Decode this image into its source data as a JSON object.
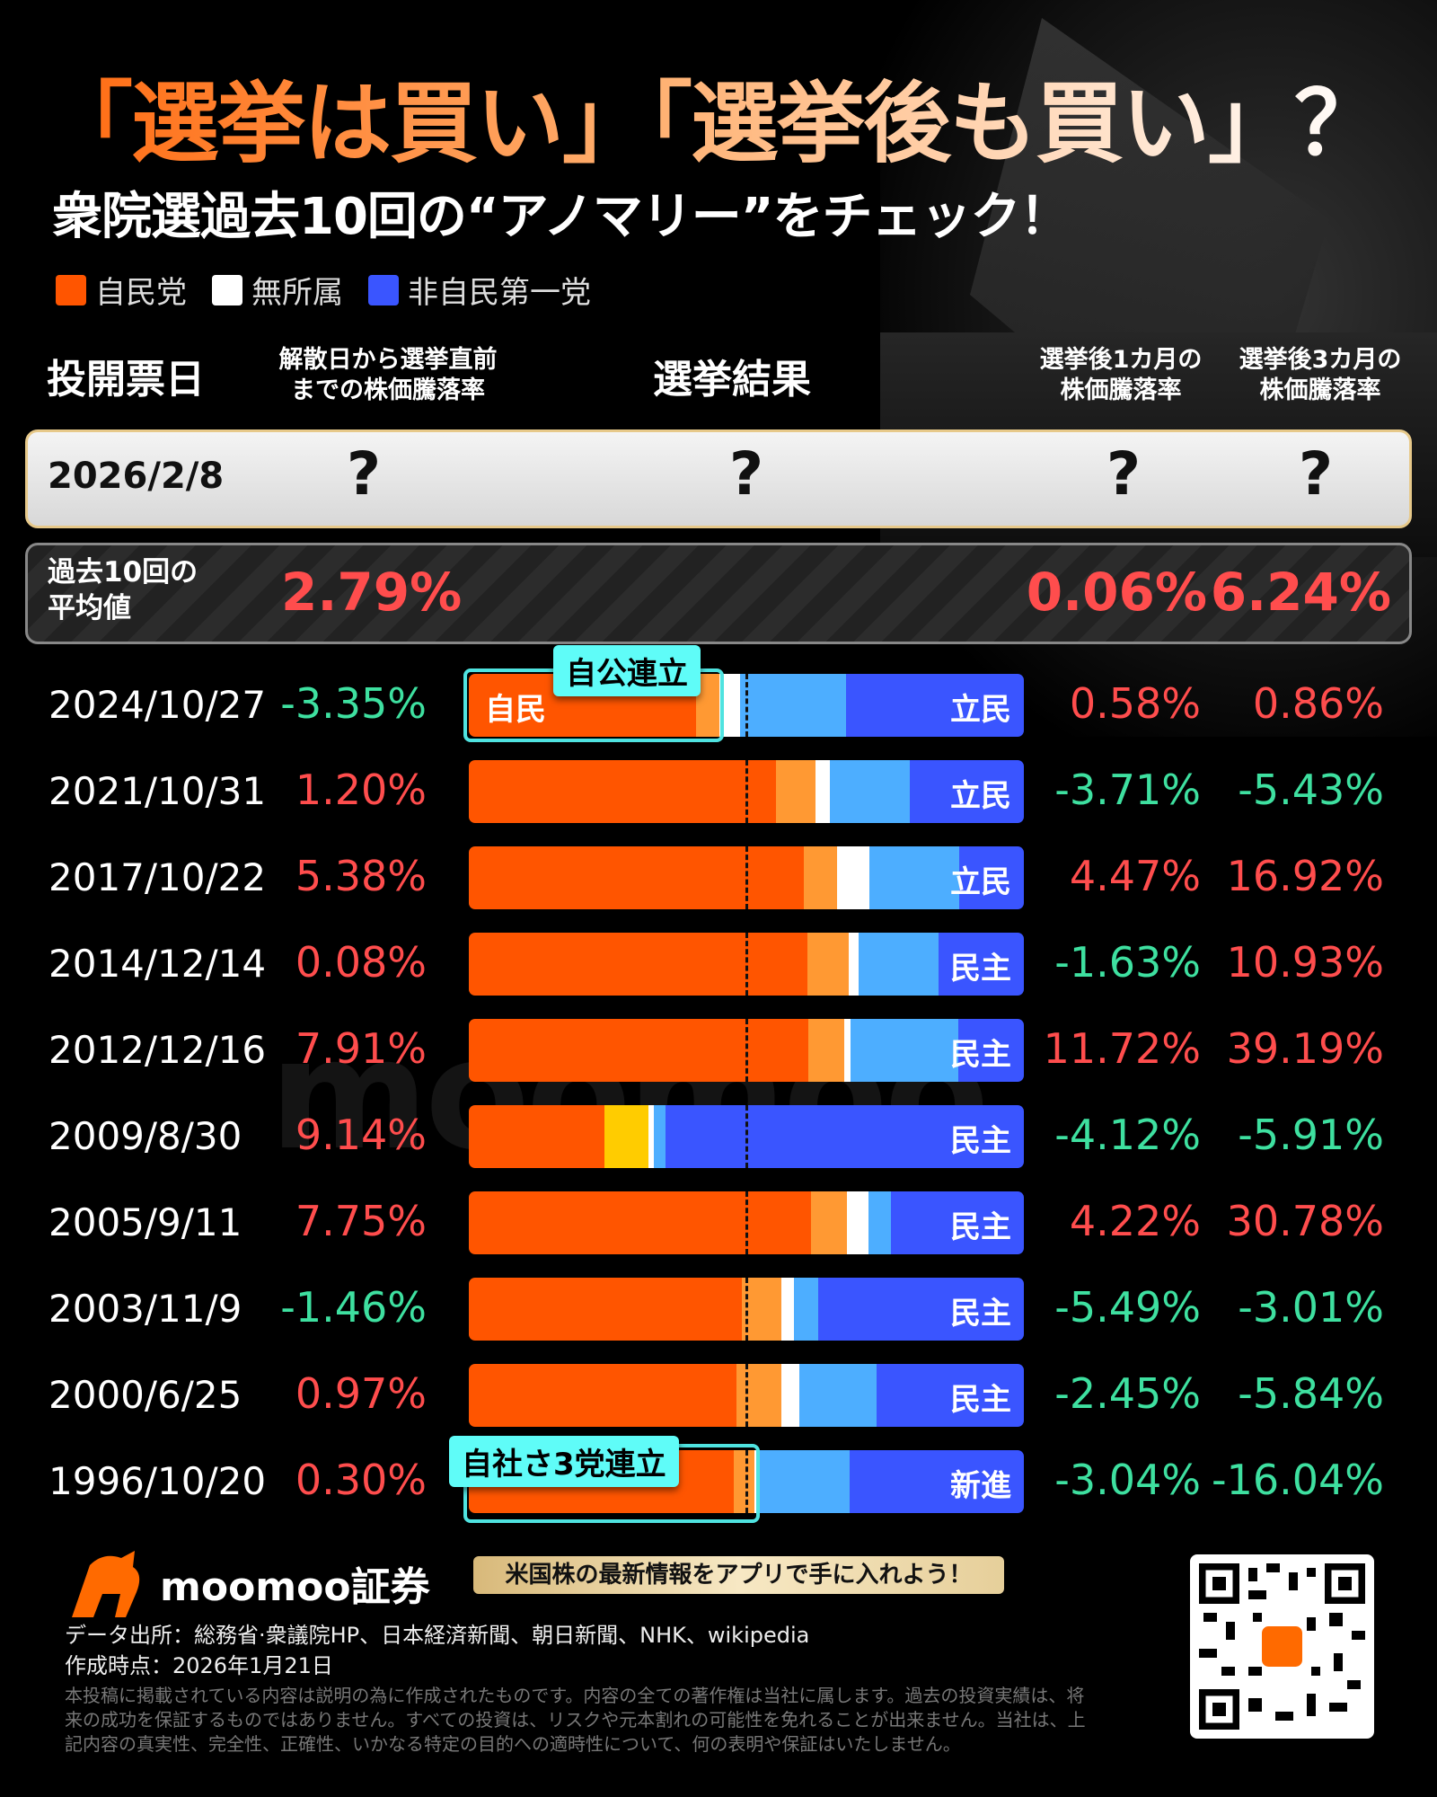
{
  "title": "「選挙は買い」「選挙後も買い」？",
  "subtitle": "衆院選過去10回の“アノマリー”をチェック！",
  "legend": [
    {
      "label": "自民党",
      "color": "#ff5500"
    },
    {
      "label": "無所属",
      "color": "#ffffff"
    },
    {
      "label": "非自民第一党",
      "color": "#3a55ff"
    }
  ],
  "headers": {
    "date": "投開票日",
    "pre_line1": "解散日から選挙直前",
    "pre_line2": "までの株価騰落率",
    "result": "選挙結果",
    "m1_line1": "選挙後1カ月の",
    "m1_line2": "株価騰落率",
    "m3_line1": "選挙後3カ月の",
    "m3_line2": "株価騰落率"
  },
  "upcoming": {
    "date": "2026/2/8",
    "pre": "?",
    "result": "?",
    "m1": "?",
    "m3": "?"
  },
  "average": {
    "label_line1": "過去10回の",
    "label_line2": "平均値",
    "pre": "2.79%",
    "m1": "0.06%",
    "m3": "6.24%"
  },
  "colors": {
    "ldp": "#ff5500",
    "partner": "#ff9933",
    "partner_2009": "#ffcc00",
    "independent": "#ffffff",
    "other": "#4daeff",
    "opposition": "#3a55ff",
    "up": "#ff4d4d",
    "down": "#3ee0a0"
  },
  "chart_data": {
    "type": "table",
    "note": "bar segments are seat shares (fractions of total seats): ldp, partner, independent, other, opposition",
    "rows": [
      {
        "date": "2024/10/27",
        "pre": "-3.35%",
        "m1": "0.58%",
        "m3": "0.86%",
        "opposition": "立民",
        "shares": [
          0.41,
          0.042,
          0.036,
          0.192,
          0.32
        ]
      },
      {
        "date": "2021/10/31",
        "pre": "1.20%",
        "m1": "-3.71%",
        "m3": "-5.43%",
        "opposition": "立民",
        "shares": [
          0.554,
          0.07,
          0.026,
          0.145,
          0.205
        ]
      },
      {
        "date": "2017/10/22",
        "pre": "5.38%",
        "m1": "4.47%",
        "m3": "16.92%",
        "opposition": "立民",
        "shares": [
          0.603,
          0.061,
          0.058,
          0.162,
          0.116
        ]
      },
      {
        "date": "2014/12/14",
        "pre": "0.08%",
        "m1": "-1.63%",
        "m3": "10.93%",
        "opposition": "民主",
        "shares": [
          0.61,
          0.074,
          0.018,
          0.145,
          0.153
        ]
      },
      {
        "date": "2012/12/16",
        "pre": "7.91%",
        "m1": "11.72%",
        "m3": "39.19%",
        "opposition": "民主",
        "shares": [
          0.612,
          0.064,
          0.012,
          0.194,
          0.118
        ]
      },
      {
        "date": "2009/8/30",
        "pre": "9.14%",
        "m1": "-4.12%",
        "m3": "-5.91%",
        "opposition": "民主",
        "shares": [
          0.245,
          0.079,
          0.01,
          0.021,
          0.645
        ]
      },
      {
        "date": "2005/9/11",
        "pre": "7.75%",
        "m1": "4.22%",
        "m3": "30.78%",
        "opposition": "民主",
        "shares": [
          0.616,
          0.065,
          0.039,
          0.041,
          0.239
        ]
      },
      {
        "date": "2003/11/9",
        "pre": "-1.46%",
        "m1": "-5.49%",
        "m3": "-3.01%",
        "opposition": "民主",
        "shares": [
          0.492,
          0.071,
          0.023,
          0.043,
          0.371
        ]
      },
      {
        "date": "2000/6/25",
        "pre": "0.97%",
        "m1": "-2.45%",
        "m3": "-5.84%",
        "opposition": "民主",
        "shares": [
          0.483,
          0.08,
          0.032,
          0.139,
          0.266
        ]
      },
      {
        "date": "1996/10/20",
        "pre": "0.30%",
        "m1": "-3.04%",
        "m3": "-16.04%",
        "opposition": "新進",
        "shares": [
          0.477,
          0.037,
          0.008,
          0.164,
          0.314
        ]
      }
    ],
    "midline": 0.5
  },
  "annotations": {
    "row0_ldp": "自民",
    "coalition_2024": "自公連立",
    "coalition_1996": "自社さ3党連立"
  },
  "watermark": "moomoo",
  "footer": {
    "brand": "moomoo証券",
    "banner": "米国株の最新情報をアプリで手に入れよう！",
    "source": "データ出所：総務省·衆議院HP、日本経済新聞、朝日新聞、NHK、wikipedia",
    "created": "作成時点：2026年1月21日",
    "disclaimer": "本投稿に掲載されている内容は説明の為に作成されたものです。内容の全ての著作権は当社に属します。過去の投資実績は、将来の成功を保証するものではありません。すべての投資は、リスクや元本割れの可能性を免れることが出来ません。当社は、上記内容の真実性、完全性、正確性、いかなる特定の目的への適時性について、何の表明や保証はいたしません。"
  }
}
